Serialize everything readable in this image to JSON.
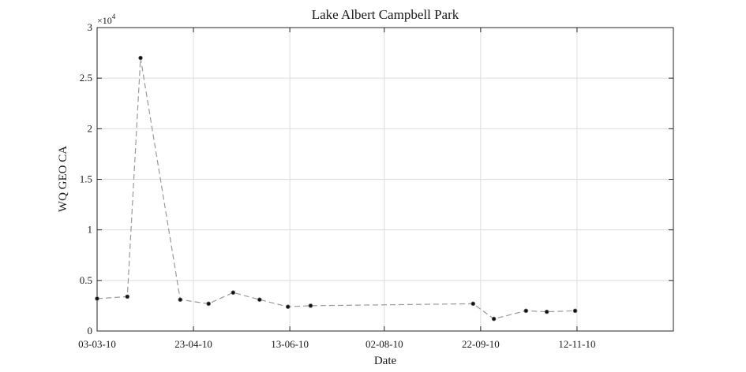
{
  "chart_data": {
    "type": "line",
    "title": "Lake Albert Campbell Park",
    "xlabel": "Date",
    "ylabel": "WQ GEO CA",
    "y_multiplier_label": "×10",
    "y_multiplier_exponent": "4",
    "xlim": [
      "2010-03-03",
      "2011-01-02"
    ],
    "ylim": [
      0,
      3
    ],
    "y_ticks": [
      0,
      0.5,
      1,
      1.5,
      2,
      2.5,
      3
    ],
    "y_tick_labels": [
      "0",
      "0.5",
      "1",
      "1.5",
      "2",
      "2.5",
      "3"
    ],
    "x_ticks": [
      "2010-03-03",
      "2010-04-23",
      "2010-06-13",
      "2010-08-02",
      "2010-09-22",
      "2010-11-12"
    ],
    "x_tick_labels": [
      "03-03-10",
      "23-04-10",
      "13-06-10",
      "02-08-10",
      "22-09-10",
      "12-11-10"
    ],
    "grid": true,
    "series": [
      {
        "style": "dashed gray line with black dot markers",
        "color": "#9a9a9a",
        "marker_color": "#111111",
        "x": [
          "2010-03-03",
          "2010-03-19",
          "2010-03-26",
          "2010-04-16",
          "2010-05-01",
          "2010-05-14",
          "2010-05-28",
          "2010-06-12",
          "2010-06-24",
          "2010-09-18",
          "2010-09-29",
          "2010-10-16",
          "2010-10-27",
          "2010-11-11"
        ],
        "y": [
          0.32,
          0.34,
          2.7,
          0.31,
          0.27,
          0.38,
          0.31,
          0.24,
          0.25,
          0.27,
          0.12,
          0.2,
          0.19,
          0.2
        ]
      }
    ]
  }
}
